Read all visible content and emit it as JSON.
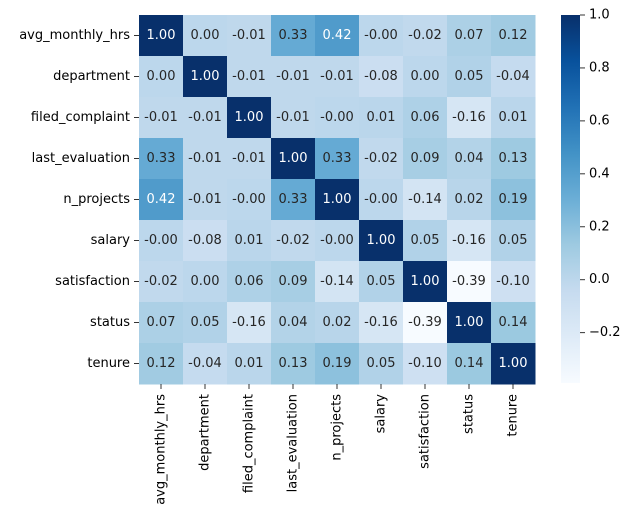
{
  "chart_data": {
    "type": "heatmap",
    "title": "",
    "xlabel": "",
    "ylabel": "",
    "x_categories": [
      "avg_monthly_hrs",
      "department",
      "filed_complaint",
      "last_evaluation",
      "n_projects",
      "salary",
      "satisfaction",
      "status",
      "tenure"
    ],
    "y_categories": [
      "avg_monthly_hrs",
      "department",
      "filed_complaint",
      "last_evaluation",
      "n_projects",
      "salary",
      "satisfaction",
      "status",
      "tenure"
    ],
    "values": [
      [
        1.0,
        0.0,
        -0.01,
        0.33,
        0.42,
        -0.0,
        -0.02,
        0.07,
        0.12
      ],
      [
        0.0,
        1.0,
        -0.01,
        -0.01,
        -0.01,
        -0.08,
        0.0,
        0.05,
        -0.04
      ],
      [
        -0.01,
        -0.01,
        1.0,
        -0.01,
        -0.0,
        0.01,
        0.06,
        -0.16,
        0.01
      ],
      [
        0.33,
        -0.01,
        -0.01,
        1.0,
        0.33,
        -0.02,
        0.09,
        0.04,
        0.13
      ],
      [
        0.42,
        -0.01,
        -0.0,
        0.33,
        1.0,
        -0.0,
        -0.14,
        0.02,
        0.19
      ],
      [
        -0.0,
        -0.08,
        0.01,
        -0.02,
        -0.0,
        1.0,
        0.05,
        -0.16,
        0.05
      ],
      [
        -0.02,
        0.0,
        0.06,
        0.09,
        -0.14,
        0.05,
        1.0,
        -0.39,
        -0.1
      ],
      [
        0.07,
        0.05,
        -0.16,
        0.04,
        0.02,
        -0.16,
        -0.39,
        1.0,
        0.14
      ],
      [
        0.12,
        -0.04,
        0.01,
        0.13,
        0.19,
        0.05,
        -0.1,
        0.14,
        1.0
      ]
    ],
    "annotation_labels": [
      [
        "1.00",
        "0.00",
        "-0.01",
        "0.33",
        "0.42",
        "-0.00",
        "-0.02",
        "0.07",
        "0.12"
      ],
      [
        "0.00",
        "1.00",
        "-0.01",
        "-0.01",
        "-0.01",
        "-0.08",
        "0.00",
        "0.05",
        "-0.04"
      ],
      [
        "-0.01",
        "-0.01",
        "1.00",
        "-0.01",
        "-0.00",
        "0.01",
        "0.06",
        "-0.16",
        "0.01"
      ],
      [
        "0.33",
        "-0.01",
        "-0.01",
        "1.00",
        "0.33",
        "-0.02",
        "0.09",
        "0.04",
        "0.13"
      ],
      [
        "0.42",
        "-0.01",
        "-0.00",
        "0.33",
        "1.00",
        "-0.00",
        "-0.14",
        "0.02",
        "0.19"
      ],
      [
        "-0.00",
        "-0.08",
        "0.01",
        "-0.02",
        "-0.00",
        "1.00",
        "0.05",
        "-0.16",
        "0.05"
      ],
      [
        "-0.02",
        "0.00",
        "0.06",
        "0.09",
        "-0.14",
        "0.05",
        "1.00",
        "-0.39",
        "-0.10"
      ],
      [
        "0.07",
        "0.05",
        "-0.16",
        "0.04",
        "0.02",
        "-0.16",
        "-0.39",
        "1.00",
        "0.14"
      ],
      [
        "0.12",
        "-0.04",
        "0.01",
        "0.13",
        "0.19",
        "0.05",
        "-0.10",
        "0.14",
        "1.00"
      ]
    ],
    "colormap": "Blues",
    "vmin": -0.39,
    "vmax": 1.0,
    "colorbar": {
      "ticks": [
        1.0,
        0.8,
        0.6,
        0.4,
        0.2,
        0.0,
        -0.2
      ],
      "tick_labels": [
        "1.0",
        "0.8",
        "0.6",
        "0.4",
        "0.2",
        "0.0",
        "−0.2"
      ]
    },
    "legend": "right",
    "grid": false
  }
}
